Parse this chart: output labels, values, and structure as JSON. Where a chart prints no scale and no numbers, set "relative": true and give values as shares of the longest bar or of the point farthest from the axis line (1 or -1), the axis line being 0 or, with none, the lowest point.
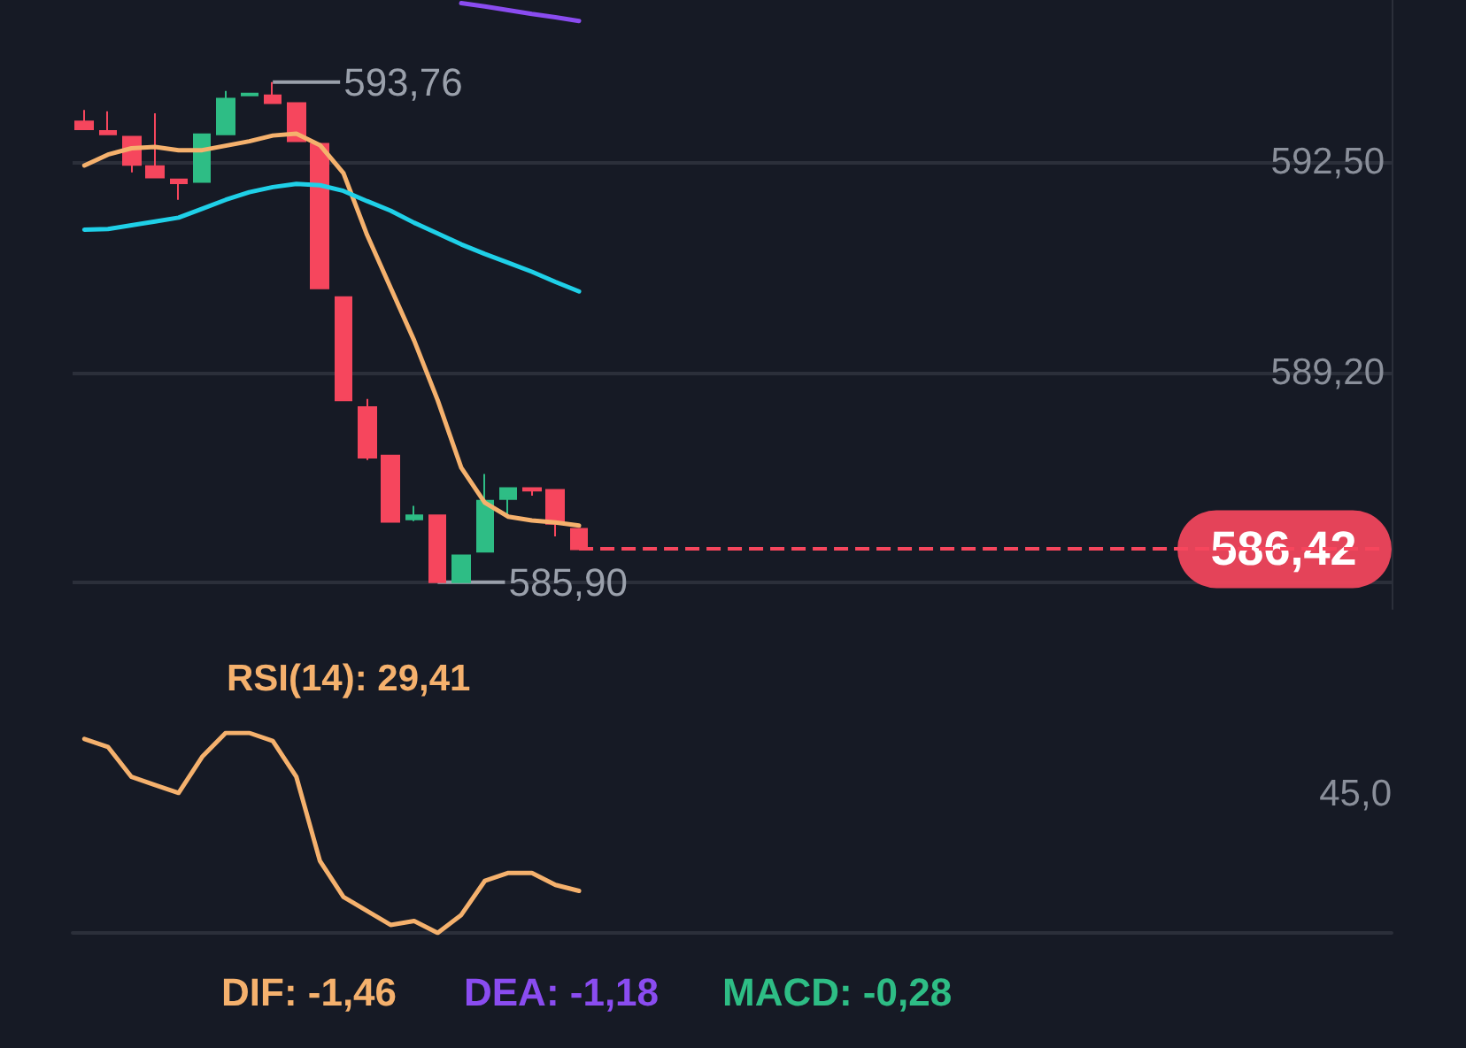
{
  "chart_data": [
    {
      "type": "candlestick",
      "categories": [
        null,
        null,
        null,
        null,
        null,
        null,
        null,
        null,
        null,
        null,
        null,
        null,
        null,
        null,
        null,
        null,
        null,
        null,
        null,
        null,
        null,
        null,
        null,
        null,
        null,
        null,
        null,
        null,
        null,
        null,
        null,
        null,
        null,
        null,
        null,
        null,
        null,
        null,
        null,
        null,
        null,
        null,
        null,
        null,
        null,
        null,
        null,
        null,
        null,
        null,
        null,
        null,
        null,
        null,
        null,
        null
      ],
      "ohlc": [
        [
          593.14,
          593.32,
          593.02,
          593.02
        ],
        [
          592.99,
          593.3,
          592.94,
          592.94
        ],
        [
          592.9,
          592.9,
          592.34,
          592.46
        ],
        [
          592.44,
          593.27,
          592.26,
          592.26
        ],
        [
          592.23,
          592.23,
          591.91,
          592.17
        ],
        [
          592.19,
          592.94,
          592.19,
          592.94
        ],
        [
          592.94,
          593.62,
          592.94,
          593.5
        ],
        [
          593.55,
          593.58,
          593.55,
          593.58
        ],
        [
          593.55,
          593.76,
          593.43,
          593.43
        ],
        [
          593.43,
          593.43,
          592.83,
          592.83
        ],
        [
          592.79,
          592.79,
          590.52,
          590.52
        ],
        [
          590.38,
          590.38,
          588.76,
          588.76
        ],
        [
          588.65,
          588.78,
          587.82,
          587.86
        ],
        [
          587.89,
          587.89,
          586.85,
          586.85
        ],
        [
          586.89,
          587.1,
          586.86,
          586.95
        ],
        [
          586.95,
          586.95,
          585.9,
          585.9
        ],
        [
          585.9,
          586.32,
          585.9,
          586.32
        ],
        [
          586.38,
          587.6,
          586.38,
          587.18
        ],
        [
          587.21,
          587.38,
          586.96,
          587.38
        ],
        [
          587.38,
          587.38,
          587.26,
          587.34
        ],
        [
          587.35,
          587.35,
          586.62,
          586.82
        ],
        [
          586.74,
          586.74,
          586.42,
          586.42
        ],
        null,
        null,
        null,
        null,
        null,
        null,
        null,
        null,
        null,
        null,
        null,
        null,
        null,
        null,
        null,
        null,
        null,
        null,
        null,
        null,
        null,
        null,
        null,
        null,
        null,
        null,
        null,
        null,
        null,
        null,
        null,
        null,
        null,
        null
      ],
      "colors": [
        "#f6465d",
        "#f6465d",
        "#f6465d",
        "#f6465d",
        "#f6465d",
        "#2ebd85",
        "#2ebd85",
        "#2ebd85",
        "#f6465d",
        "#f6465d",
        "#f6465d",
        "#f6465d",
        "#f6465d",
        "#f6465d",
        "#2ebd85",
        "#f6465d",
        "#2ebd85",
        "#2ebd85",
        "#2ebd85",
        "#f6465d",
        "#f6465d",
        "#f6465d",
        null,
        null,
        null,
        null,
        null,
        null,
        null,
        null,
        null,
        null,
        null,
        null,
        null,
        null,
        null,
        null,
        null,
        null,
        null,
        null,
        null,
        null,
        null,
        null,
        null,
        null,
        null,
        null,
        null,
        null,
        null,
        null,
        null,
        null
      ],
      "series": [
        {
          "type": "line",
          "color": "#f5b16d",
          "values": [
            592.45,
            592.62,
            592.72,
            592.74,
            592.69,
            592.69,
            592.76,
            592.83,
            592.92,
            592.95,
            592.77,
            592.33,
            591.36,
            590.53,
            589.7,
            588.76,
            587.7,
            587.15,
            586.93,
            586.87,
            586.84,
            586.79,
            null,
            null,
            null,
            null,
            null,
            null,
            null,
            null,
            null,
            null,
            null,
            null,
            null,
            null,
            null,
            null,
            null,
            null,
            null,
            null,
            null,
            null,
            null,
            null,
            null,
            null,
            null,
            null,
            null,
            null,
            null,
            null,
            null,
            null
          ]
        },
        {
          "type": "line",
          "color": "#1fd0e8",
          "values": [
            591.44,
            591.45,
            591.51,
            591.57,
            591.63,
            591.77,
            591.91,
            592.03,
            592.11,
            592.16,
            592.14,
            592.05,
            591.89,
            591.74,
            591.55,
            591.38,
            591.21,
            591.06,
            590.92,
            590.78,
            590.62,
            590.47,
            null,
            null,
            null,
            null,
            null,
            null,
            null,
            null,
            null,
            null,
            null,
            null,
            null,
            null,
            null,
            null,
            null,
            null,
            null,
            null,
            null,
            null,
            null,
            null,
            null,
            null,
            null,
            null,
            null,
            null,
            null,
            null,
            null,
            null
          ]
        },
        {
          "type": "line",
          "color": "#8a4cf0",
          "values": [
            null,
            null,
            null,
            null,
            null,
            null,
            null,
            null,
            null,
            null,
            null,
            null,
            null,
            null,
            null,
            null,
            595.0,
            594.95,
            594.89,
            594.83,
            594.78,
            594.72,
            null,
            null,
            null,
            null,
            null,
            null,
            null,
            null,
            null,
            null,
            null,
            null,
            null,
            null,
            null,
            null,
            null,
            null,
            null,
            null,
            null,
            null,
            null,
            null,
            null,
            null,
            null,
            null,
            null,
            null,
            null,
            null,
            null,
            null
          ]
        }
      ],
      "ylim": [
        585.48,
        595.05
      ],
      "yticks": [
        {
          "value": 585.9,
          "label": null
        },
        {
          "value": 589.2,
          "label": "589,20"
        },
        {
          "value": 592.5,
          "label": "592,50"
        }
      ],
      "grid": "y",
      "marker": "none",
      "line_style": "solid",
      "ref_lines": [
        {
          "axis": "y",
          "value": 586.42,
          "label": "586,42",
          "color": "#f6465d",
          "line_style": "dashed"
        }
      ],
      "annotations": [
        "593,76",
        "585,90"
      ]
    },
    {
      "type": "line",
      "title": "RSI(14): 29,41",
      "categories": [
        null,
        null,
        null,
        null,
        null,
        null,
        null,
        null,
        null,
        null,
        null,
        null,
        null,
        null,
        null,
        null,
        null,
        null,
        null,
        null,
        null,
        null,
        null,
        null,
        null,
        null,
        null,
        null,
        null,
        null,
        null,
        null,
        null,
        null,
        null,
        null,
        null,
        null,
        null,
        null,
        null,
        null,
        null,
        null,
        null,
        null,
        null,
        null,
        null,
        null,
        null,
        null,
        null,
        null,
        null,
        null
      ],
      "series": [
        {
          "color": "#f5b16d",
          "values": [
            0.97,
            0.93,
            0.78,
            0.74,
            0.7,
            0.88,
            1,
            1,
            0.96,
            0.78,
            0.36,
            0.18,
            0.11,
            0.04,
            0.06,
            0,
            0.09,
            0.26,
            0.3,
            0.3,
            0.24,
            0.21,
            null,
            null,
            null,
            null,
            null,
            null,
            null,
            null,
            null,
            null,
            null,
            null,
            null,
            null,
            null,
            null,
            null,
            null,
            null,
            null,
            null,
            null,
            null,
            null,
            null,
            null,
            null,
            null,
            null,
            null,
            null,
            null,
            null,
            null
          ]
        }
      ],
      "relative": true,
      "annotations": [
        "45,0"
      ],
      "marker": "none",
      "line_style": "solid"
    },
    {
      "type": "other",
      "annotations": [
        "DIF: -1,46",
        "DEA: -1,18",
        "MACD: -0,28"
      ]
    }
  ]
}
